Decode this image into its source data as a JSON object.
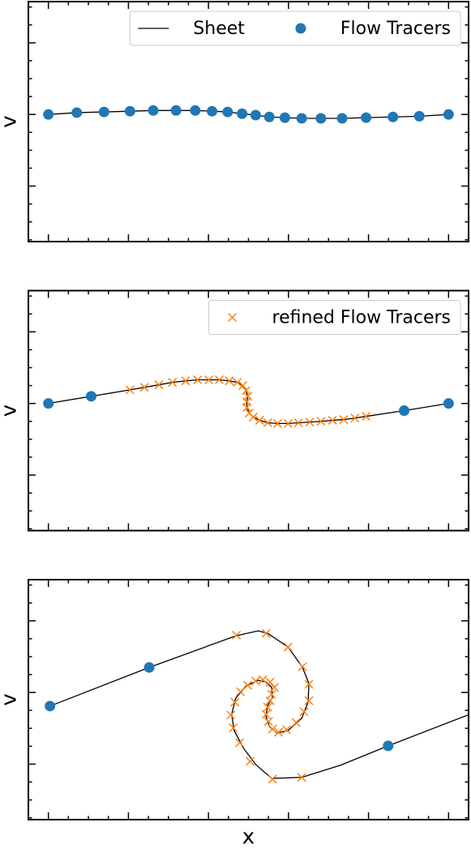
{
  "chart_data": [
    {
      "type": "line",
      "ylabel": "v",
      "legend": "upper right",
      "xlim": [
        -0.05,
        1.05
      ],
      "ylim": [
        -0.355,
        0.315
      ],
      "xticks": [
        0,
        0.2,
        0.4,
        0.6,
        0.8,
        1
      ],
      "yticks": [
        -0.2,
        0,
        0.2
      ],
      "xticks_minor": [
        0.05,
        0.1,
        0.15,
        0.25,
        0.3,
        0.35,
        0.45,
        0.5,
        0.55,
        0.65,
        0.7,
        0.75,
        0.85,
        0.9,
        0.95
      ],
      "yticks_minor": [
        -0.35,
        -0.3,
        -0.25,
        -0.15,
        -0.1,
        -0.05,
        0.05,
        0.1,
        0.15,
        0.25,
        0.3
      ],
      "series": [
        {
          "name": "Sheet",
          "color": "#000000",
          "marker": "line",
          "x": [
            0,
            0.071,
            0.139,
            0.204,
            0.262,
            0.319,
            0.367,
            0.409,
            0.448,
            0.484,
            0.518,
            0.552,
            0.591,
            0.633,
            0.681,
            0.734,
            0.794,
            0.861,
            0.927,
            1.0
          ],
          "values": [
            0,
            0.005,
            0.007,
            0.009,
            0.011,
            0.011,
            0.011,
            0.009,
            0.007,
            0.002,
            -0.002,
            -0.007,
            -0.009,
            -0.011,
            -0.011,
            -0.011,
            -0.009,
            -0.007,
            -0.005,
            0
          ]
        },
        {
          "name": "Flow Tracers",
          "color": "#1f77b4",
          "marker": "o",
          "x": [
            0,
            0.071,
            0.139,
            0.204,
            0.262,
            0.319,
            0.367,
            0.409,
            0.448,
            0.484,
            0.518,
            0.552,
            0.591,
            0.633,
            0.681,
            0.734,
            0.794,
            0.861,
            0.927,
            1.0
          ],
          "values": [
            0,
            0.005,
            0.007,
            0.009,
            0.011,
            0.011,
            0.011,
            0.009,
            0.007,
            0.002,
            -0.002,
            -0.007,
            -0.009,
            -0.011,
            -0.011,
            -0.011,
            -0.009,
            -0.007,
            -0.005,
            0
          ]
        }
      ]
    },
    {
      "type": "line",
      "ylabel": "v",
      "legend": "upper right",
      "xlim": [
        -0.05,
        1.05
      ],
      "ylim": [
        -0.355,
        0.315
      ],
      "xticks": [
        0,
        0.2,
        0.4,
        0.6,
        0.8,
        1
      ],
      "yticks": [
        -0.2,
        0,
        0.2
      ],
      "xticks_minor": [
        0.05,
        0.1,
        0.15,
        0.25,
        0.3,
        0.35,
        0.45,
        0.5,
        0.55,
        0.65,
        0.7,
        0.75,
        0.85,
        0.9,
        0.95
      ],
      "yticks_minor": [
        -0.35,
        -0.3,
        -0.25,
        -0.15,
        -0.1,
        -0.05,
        0.05,
        0.1,
        0.15,
        0.25,
        0.3
      ],
      "series": [
        {
          "color": "#000000",
          "marker": "line",
          "x": [
            0,
            0.107,
            0.204,
            0.24,
            0.276,
            0.31,
            0.343,
            0.373,
            0.401,
            0.427,
            0.452,
            0.472,
            0.486,
            0.494,
            0.498,
            0.496,
            0.496,
            0.502,
            0.512,
            0.528,
            0.548,
            0.573,
            0.599,
            0.625,
            0.653,
            0.681,
            0.71,
            0.738,
            0.766,
            0.794,
            0.889,
            1.0
          ],
          "values": [
            0,
            0.02,
            0.038,
            0.045,
            0.052,
            0.059,
            0.063,
            0.066,
            0.066,
            0.066,
            0.063,
            0.059,
            0.05,
            0.036,
            0.02,
            0.005,
            -0.011,
            -0.027,
            -0.038,
            -0.047,
            -0.054,
            -0.056,
            -0.056,
            -0.054,
            -0.052,
            -0.05,
            -0.047,
            -0.045,
            -0.041,
            -0.036,
            -0.02,
            0
          ]
        },
        {
          "color": "#1f77b4",
          "marker": "o",
          "x": [
            0,
            0.107,
            0.889,
            1.0
          ],
          "values": [
            0,
            0.02,
            -0.02,
            0
          ]
        },
        {
          "name": "refined Flow Tracers",
          "color": "#ff7f0e",
          "marker": "x",
          "x": [
            0.204,
            0.24,
            0.276,
            0.31,
            0.343,
            0.373,
            0.401,
            0.427,
            0.452,
            0.472,
            0.486,
            0.494,
            0.498,
            0.496,
            0.496,
            0.502,
            0.512,
            0.528,
            0.548,
            0.573,
            0.599,
            0.625,
            0.653,
            0.681,
            0.71,
            0.738,
            0.766,
            0.794
          ],
          "values": [
            0.038,
            0.045,
            0.052,
            0.059,
            0.063,
            0.066,
            0.066,
            0.066,
            0.063,
            0.059,
            0.05,
            0.036,
            0.02,
            0.005,
            -0.011,
            -0.027,
            -0.038,
            -0.047,
            -0.054,
            -0.056,
            -0.056,
            -0.054,
            -0.052,
            -0.05,
            -0.047,
            -0.045,
            -0.041,
            -0.036
          ]
        }
      ]
    },
    {
      "type": "line",
      "ylabel": "v",
      "xlabel": "x",
      "xlim": [
        -0.05,
        1.05
      ],
      "ylim": [
        -0.355,
        0.315
      ],
      "xticks": [
        0,
        0.2,
        0.4,
        0.6,
        0.8,
        1
      ],
      "yticks": [
        -0.2,
        0,
        0.2
      ],
      "xticks_minor": [
        0.05,
        0.1,
        0.15,
        0.25,
        0.3,
        0.35,
        0.45,
        0.5,
        0.55,
        0.65,
        0.7,
        0.75,
        0.85,
        0.9,
        0.95
      ],
      "yticks_minor": [
        -0.35,
        -0.3,
        -0.25,
        -0.15,
        -0.1,
        -0.05,
        0.05,
        0.1,
        0.15,
        0.25,
        0.3
      ],
      "series": [
        {
          "color": "#000000",
          "marker": "line",
          "x": [
            0.004,
            0.252,
            0.468,
            0.524,
            0.548,
            0.599,
            0.635,
            0.651,
            0.649,
            0.633,
            0.599,
            0.571,
            0.552,
            0.544,
            0.548,
            0.56,
            0.558,
            0.544,
            0.524,
            0.494,
            0.468,
            0.458,
            0.464,
            0.488,
            0.518,
            0.558,
            0.633,
            0.73,
            0.849,
            1.048
          ],
          "values": [
            -0.038,
            0.07,
            0.158,
            0.172,
            0.165,
            0.127,
            0.07,
            0.025,
            -0.027,
            -0.072,
            -0.106,
            -0.113,
            -0.095,
            -0.066,
            -0.036,
            -0.014,
            0.014,
            0.029,
            0.034,
            0.018,
            -0.016,
            -0.061,
            -0.106,
            -0.156,
            -0.201,
            -0.24,
            -0.237,
            -0.203,
            -0.149,
            -0.063
          ]
        },
        {
          "color": "#1f77b4",
          "marker": "o",
          "x": [
            0.004,
            0.252,
            0.849
          ],
          "values": [
            -0.038,
            0.07,
            -0.149
          ]
        },
        {
          "color": "#ff7f0e",
          "marker": "x",
          "x": [
            0.47,
            0.544,
            0.599,
            0.635,
            0.651,
            0.651,
            0.639,
            0.619,
            0.595,
            0.575,
            0.56,
            0.55,
            0.544,
            0.548,
            0.554,
            0.558,
            0.565,
            0.554,
            0.536,
            0.518,
            0.498,
            0.48,
            0.466,
            0.456,
            0.462,
            0.478,
            0.504,
            0.56,
            0.633
          ],
          "values": [
            0.16,
            0.165,
            0.127,
            0.072,
            0.023,
            -0.023,
            -0.054,
            -0.084,
            -0.104,
            -0.111,
            -0.102,
            -0.081,
            -0.061,
            -0.041,
            -0.023,
            -0.005,
            0.014,
            0.029,
            0.036,
            0.032,
            0.02,
            0.002,
            -0.027,
            -0.063,
            -0.099,
            -0.14,
            -0.192,
            -0.242,
            -0.237
          ]
        }
      ]
    }
  ]
}
